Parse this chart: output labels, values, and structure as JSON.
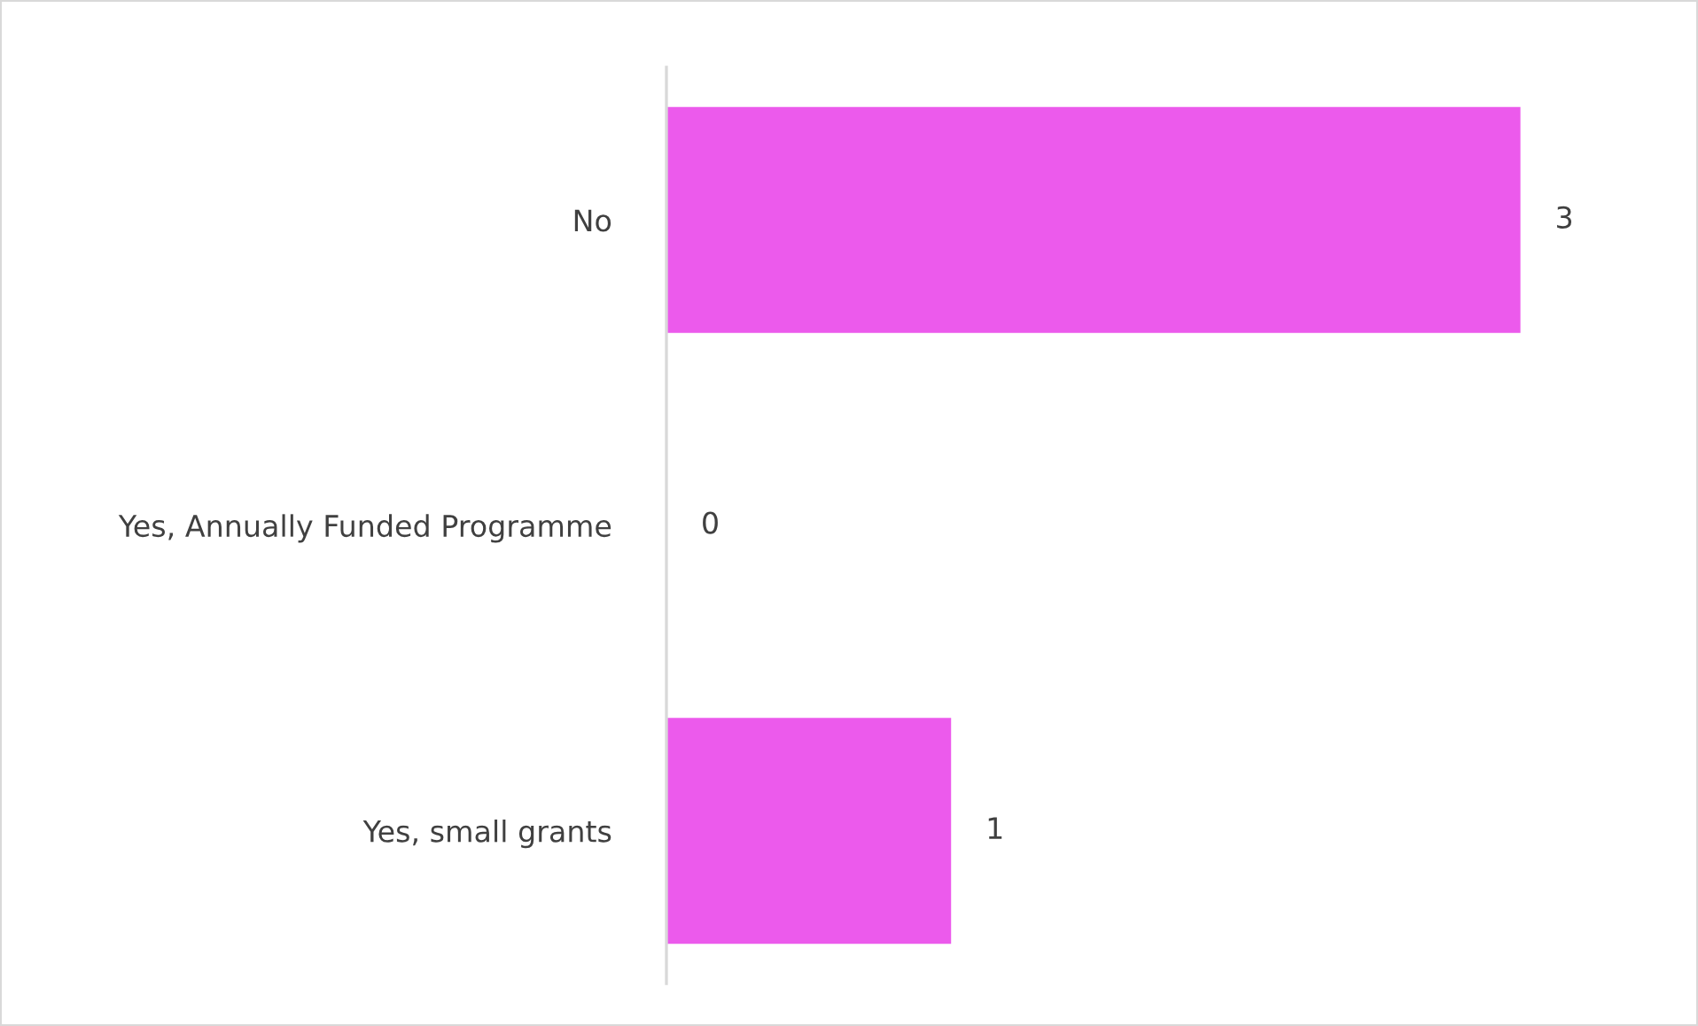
{
  "chart_data": {
    "type": "bar",
    "orientation": "horizontal",
    "categories": [
      "No",
      "Yes, Annually Funded Programme",
      "Yes, small grants"
    ],
    "values": [
      3,
      0,
      1
    ],
    "color": "#ec5aec",
    "data_labels": true,
    "grid": false,
    "legend": false,
    "tick_labels": "y"
  }
}
